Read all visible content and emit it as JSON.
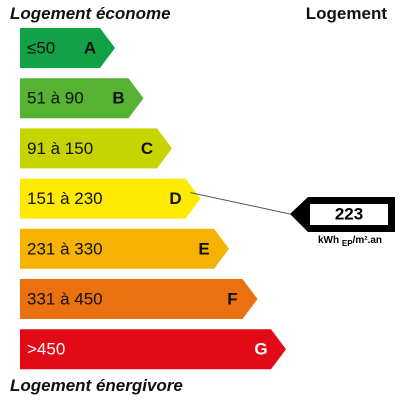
{
  "header": {
    "left": "Logement économe",
    "right": "Logement"
  },
  "classes": [
    {
      "range": "≤50",
      "letter": "A",
      "color": "#12a146"
    },
    {
      "range": "51 à 90",
      "letter": "B",
      "color": "#55b232"
    },
    {
      "range": "91 à 150",
      "letter": "C",
      "color": "#c6d400"
    },
    {
      "range": "151 à 230",
      "letter": "D",
      "color": "#fdea00"
    },
    {
      "range": "231 à 330",
      "letter": "E",
      "color": "#f6b200"
    },
    {
      "range": "331 à 450",
      "letter": "F",
      "color": "#eb7110"
    },
    {
      "range": ">450",
      "letter": "G",
      "color": "#e30a17"
    }
  ],
  "indicator": {
    "value": "223",
    "unit": "kWh",
    "unit_sub": "EP",
    "unit_rest": "/m².an",
    "class_index": 3
  },
  "footer": "Logement énergivore"
}
